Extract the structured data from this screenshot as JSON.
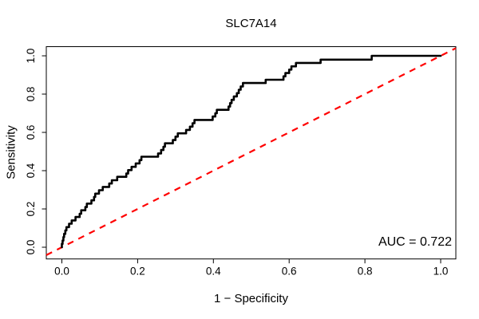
{
  "figure": {
    "title": "SLC7A14",
    "annotation": "AUC = 0.722"
  },
  "chart_data": {
    "type": "line",
    "subtype": "roc-step-curve",
    "title": "SLC7A14",
    "xlabel": "1 − Specificity",
    "ylabel": "Sensitivity",
    "xlim": [
      0,
      1
    ],
    "ylim": [
      0,
      1
    ],
    "grid": false,
    "x_ticks": [
      "0.0",
      "0.2",
      "0.4",
      "0.6",
      "0.8",
      "1.0"
    ],
    "y_ticks": [
      "0.0",
      "0.2",
      "0.4",
      "0.6",
      "0.8",
      "1.0"
    ],
    "auc": 0.722,
    "annotation": "AUC = 0.722",
    "curve_color": "#000000",
    "reference_color": "#ff0000",
    "axis_color": "#000000",
    "reference_line": {
      "from": [
        0,
        0
      ],
      "to": [
        1,
        1
      ],
      "style": "dashed"
    },
    "roc_curve": [
      [
        0.0,
        0.0
      ],
      [
        0.0,
        0.018
      ],
      [
        0.002,
        0.018
      ],
      [
        0.002,
        0.035
      ],
      [
        0.004,
        0.035
      ],
      [
        0.004,
        0.053
      ],
      [
        0.006,
        0.053
      ],
      [
        0.006,
        0.07
      ],
      [
        0.009,
        0.07
      ],
      [
        0.009,
        0.088
      ],
      [
        0.012,
        0.088
      ],
      [
        0.012,
        0.105
      ],
      [
        0.019,
        0.105
      ],
      [
        0.019,
        0.123
      ],
      [
        0.026,
        0.123
      ],
      [
        0.026,
        0.14
      ],
      [
        0.036,
        0.14
      ],
      [
        0.036,
        0.158
      ],
      [
        0.047,
        0.158
      ],
      [
        0.047,
        0.175
      ],
      [
        0.051,
        0.175
      ],
      [
        0.051,
        0.193
      ],
      [
        0.062,
        0.193
      ],
      [
        0.062,
        0.21
      ],
      [
        0.066,
        0.21
      ],
      [
        0.066,
        0.228
      ],
      [
        0.078,
        0.228
      ],
      [
        0.078,
        0.245
      ],
      [
        0.085,
        0.245
      ],
      [
        0.085,
        0.263
      ],
      [
        0.088,
        0.263
      ],
      [
        0.088,
        0.28
      ],
      [
        0.098,
        0.28
      ],
      [
        0.098,
        0.298
      ],
      [
        0.108,
        0.298
      ],
      [
        0.108,
        0.315
      ],
      [
        0.125,
        0.315
      ],
      [
        0.125,
        0.333
      ],
      [
        0.132,
        0.333
      ],
      [
        0.132,
        0.35
      ],
      [
        0.146,
        0.35
      ],
      [
        0.146,
        0.368
      ],
      [
        0.17,
        0.368
      ],
      [
        0.17,
        0.385
      ],
      [
        0.175,
        0.385
      ],
      [
        0.175,
        0.403
      ],
      [
        0.184,
        0.403
      ],
      [
        0.184,
        0.42
      ],
      [
        0.195,
        0.42
      ],
      [
        0.195,
        0.438
      ],
      [
        0.205,
        0.438
      ],
      [
        0.205,
        0.455
      ],
      [
        0.21,
        0.455
      ],
      [
        0.21,
        0.473
      ],
      [
        0.254,
        0.473
      ],
      [
        0.254,
        0.49
      ],
      [
        0.262,
        0.49
      ],
      [
        0.262,
        0.508
      ],
      [
        0.268,
        0.508
      ],
      [
        0.268,
        0.525
      ],
      [
        0.272,
        0.525
      ],
      [
        0.272,
        0.543
      ],
      [
        0.293,
        0.543
      ],
      [
        0.293,
        0.56
      ],
      [
        0.3,
        0.56
      ],
      [
        0.3,
        0.578
      ],
      [
        0.306,
        0.578
      ],
      [
        0.306,
        0.595
      ],
      [
        0.328,
        0.595
      ],
      [
        0.328,
        0.613
      ],
      [
        0.338,
        0.613
      ],
      [
        0.338,
        0.63
      ],
      [
        0.345,
        0.63
      ],
      [
        0.345,
        0.648
      ],
      [
        0.35,
        0.648
      ],
      [
        0.35,
        0.665
      ],
      [
        0.398,
        0.665
      ],
      [
        0.398,
        0.683
      ],
      [
        0.405,
        0.683
      ],
      [
        0.405,
        0.7
      ],
      [
        0.409,
        0.7
      ],
      [
        0.409,
        0.718
      ],
      [
        0.44,
        0.718
      ],
      [
        0.44,
        0.735
      ],
      [
        0.444,
        0.735
      ],
      [
        0.444,
        0.753
      ],
      [
        0.448,
        0.753
      ],
      [
        0.448,
        0.77
      ],
      [
        0.454,
        0.77
      ],
      [
        0.454,
        0.788
      ],
      [
        0.462,
        0.788
      ],
      [
        0.462,
        0.805
      ],
      [
        0.467,
        0.805
      ],
      [
        0.467,
        0.823
      ],
      [
        0.472,
        0.823
      ],
      [
        0.472,
        0.84
      ],
      [
        0.478,
        0.84
      ],
      [
        0.478,
        0.858
      ],
      [
        0.538,
        0.858
      ],
      [
        0.538,
        0.875
      ],
      [
        0.585,
        0.875
      ],
      [
        0.585,
        0.893
      ],
      [
        0.59,
        0.893
      ],
      [
        0.59,
        0.91
      ],
      [
        0.6,
        0.91
      ],
      [
        0.6,
        0.928
      ],
      [
        0.606,
        0.928
      ],
      [
        0.606,
        0.945
      ],
      [
        0.618,
        0.945
      ],
      [
        0.618,
        0.963
      ],
      [
        0.683,
        0.963
      ],
      [
        0.683,
        0.98
      ],
      [
        0.818,
        0.98
      ],
      [
        0.818,
        1.0
      ],
      [
        1.0,
        1.0
      ]
    ]
  }
}
